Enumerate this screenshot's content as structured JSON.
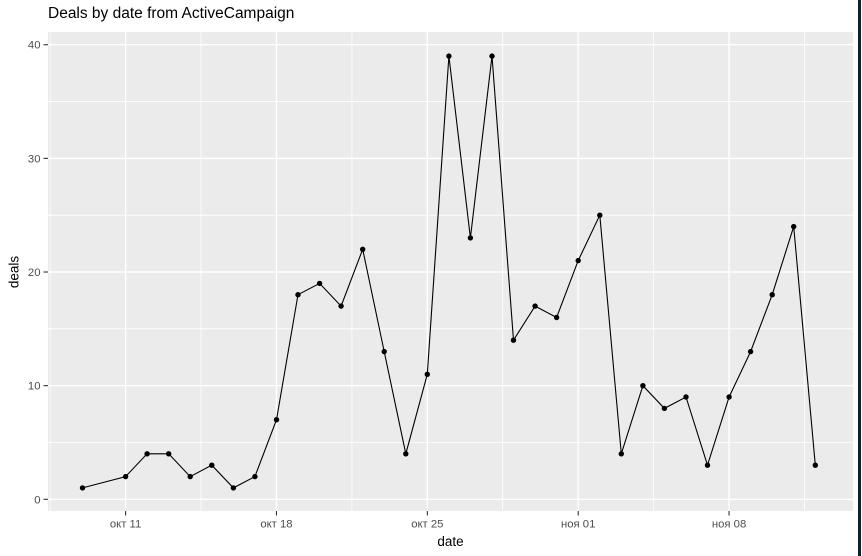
{
  "window": {
    "background": "#FFFFFF"
  },
  "chart_data": {
    "type": "line",
    "title": "Deals by date from ActiveCampaign",
    "xlabel": "date",
    "ylabel": "deals",
    "x": [
      "окт 09",
      "окт 11",
      "окт 12",
      "окт 13",
      "окт 14",
      "окт 15",
      "окт 16",
      "окт 17",
      "окт 18",
      "окт 19",
      "окт 20",
      "окт 21",
      "окт 22",
      "окт 23",
      "окт 24",
      "окт 25",
      "окт 26",
      "окт 27",
      "окт 28",
      "окт 29",
      "окт 30",
      "окт 31",
      "ноя 01",
      "ноя 02",
      "ноя 03",
      "ноя 04",
      "ноя 05",
      "ноя 06",
      "ноя 07",
      "ноя 08",
      "ноя 09",
      "ноя 10",
      "ноя 11",
      "ноя 12"
    ],
    "day_offsets": [
      0,
      2,
      3,
      4,
      5,
      6,
      7,
      8,
      9,
      10,
      11,
      12,
      13,
      14,
      15,
      16,
      17,
      18,
      19,
      20,
      21,
      22,
      23,
      24,
      25,
      26,
      27,
      28,
      29,
      30,
      31,
      32,
      33,
      34
    ],
    "values": [
      1,
      2,
      4,
      4,
      2,
      3,
      1,
      2,
      7,
      18,
      19,
      17,
      22,
      13,
      4,
      11,
      39,
      23,
      39,
      14,
      17,
      16,
      21,
      25,
      4,
      10,
      8,
      9,
      3,
      9,
      13,
      18,
      24,
      3
    ],
    "x_ticks": [
      {
        "day": 2,
        "label": "окт 11"
      },
      {
        "day": 9,
        "label": "окт 18"
      },
      {
        "day": 16,
        "label": "окт 25"
      },
      {
        "day": 23,
        "label": "ноя 01"
      },
      {
        "day": 30,
        "label": "ноя 08"
      }
    ],
    "x_minor_days": [
      -1.5,
      5.5,
      12.5,
      19.5,
      26.5,
      33.5
    ],
    "y_ticks": [
      0,
      10,
      20,
      30,
      40
    ],
    "y_minor_ticks": [
      5,
      15,
      25,
      35
    ],
    "xlim_days": [
      -1.6,
      35.75
    ],
    "ylim": [
      -1.03,
      41.12
    ],
    "grid": "major+minor",
    "legend": "none",
    "marker": "point",
    "colors": {
      "panel_background": "#EBEBEB",
      "gridline": "#FFFFFF",
      "line": "#000000",
      "point": "#000000",
      "axis_text": "#4D4D4D",
      "tick_mark": "#333333",
      "title_text": "#000000",
      "window_border": "#0D232B",
      "page_background": "#FFFFFF"
    }
  }
}
